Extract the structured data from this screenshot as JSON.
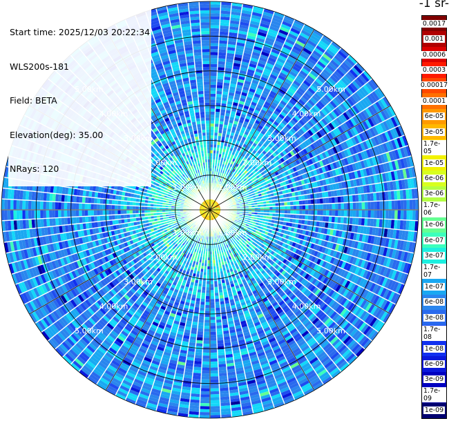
{
  "info": {
    "start_time": "Start time: 2025/12/03 20:22:34",
    "instrument": "WLS200s-181",
    "field": "Field: BETA",
    "elevation": "Elevation(deg): 35.00",
    "nrays": "NRays: 120"
  },
  "colorbar": {
    "unit_label": "-1 sr-",
    "labels": [
      "0.0017",
      "0.001",
      "0.0006",
      "0.0003",
      "0.00017",
      "0.0001",
      "6e-05",
      "3e-05",
      "1.7e-05",
      "1e-05",
      "6e-06",
      "3e-06",
      "1.7e-06",
      "1e-06",
      "6e-07",
      "3e-07",
      "1.7e-07",
      "1e-07",
      "6e-08",
      "3e-08",
      "1.7e-08",
      "1e-08",
      "6e-09",
      "3e-09",
      "1.7e-09",
      "1e-09"
    ],
    "colors": [
      "#800000",
      "#b00000",
      "#dc0000",
      "#ff1a00",
      "#ff4800",
      "#ff7000",
      "#ff9a00",
      "#ffb800",
      "#ffd800",
      "#f2f200",
      "#d8ff1e",
      "#b4ff44",
      "#8cff6a",
      "#64ff92",
      "#3cffbc",
      "#1cf0e0",
      "#14d8f8",
      "#1aa8f2",
      "#2a86ee",
      "#2a6aee",
      "#1e4cf0",
      "#1030f0",
      "#0a18dc",
      "#0000c0",
      "#000098",
      "#000070"
    ]
  },
  "chart_data": {
    "type": "heatmap",
    "projection": "polar (PPI scan)",
    "field": "BETA",
    "elevation_deg": 35.0,
    "n_rays": 120,
    "range_rings_km": [
      1,
      2,
      3,
      4,
      5
    ],
    "ring_labels": [
      "1.00km",
      "2.00km",
      "3.00km",
      "4.00km",
      "5.00km"
    ],
    "max_range_km": 6.0,
    "color_scale": "log",
    "value_range": [
      1e-09,
      0.0017
    ],
    "typical_values": {
      "center_core": 1.7e-05,
      "inner_zone": 1e-06,
      "outer_zone": 6e-08
    }
  }
}
